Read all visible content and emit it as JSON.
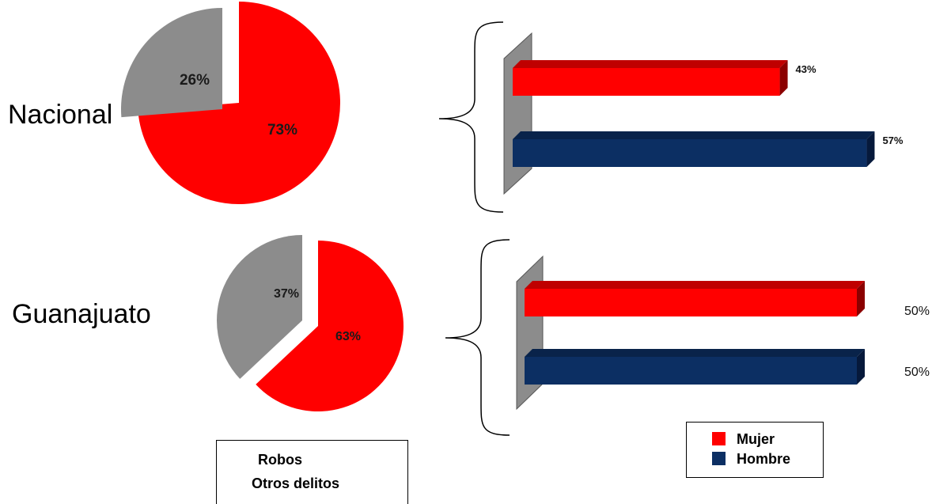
{
  "colors": {
    "robos": "#ff0000",
    "otros": "#8c8c8c",
    "mujer": "#ff0000",
    "mujer_dark": "#8b0000",
    "hombre": "#0c2f63",
    "hombre_dark": "#06193b",
    "wall": "#8c8c8c"
  },
  "chart_data": [
    {
      "type": "pie",
      "region": "Nacional",
      "slices": [
        {
          "category": "Robos",
          "value": 73,
          "label": "73%"
        },
        {
          "category": "Otros delitos",
          "value": 26,
          "label": "26%"
        }
      ]
    },
    {
      "type": "bar",
      "region": "Nacional",
      "orientation": "horizontal",
      "categories": [
        "Mujer",
        "Hombre"
      ],
      "values": [
        43,
        57
      ],
      "labels": [
        "43%",
        "57%"
      ]
    },
    {
      "type": "pie",
      "region": "Guanajuato",
      "slices": [
        {
          "category": "Robos",
          "value": 63,
          "label": "63%"
        },
        {
          "category": "Otros delitos",
          "value": 37,
          "label": "37%"
        }
      ]
    },
    {
      "type": "bar",
      "region": "Guanajuato",
      "orientation": "horizontal",
      "categories": [
        "Mujer",
        "Hombre"
      ],
      "values": [
        50,
        50
      ],
      "labels": [
        "50%",
        "50%"
      ]
    }
  ],
  "regions": {
    "nacional": "Nacional",
    "guanajuato": "Guanajuato"
  },
  "legend_delitos": {
    "robos": "Robos",
    "otros": "Otros delitos"
  },
  "legend_sexo": {
    "mujer": "Mujer",
    "hombre": "Hombre"
  }
}
